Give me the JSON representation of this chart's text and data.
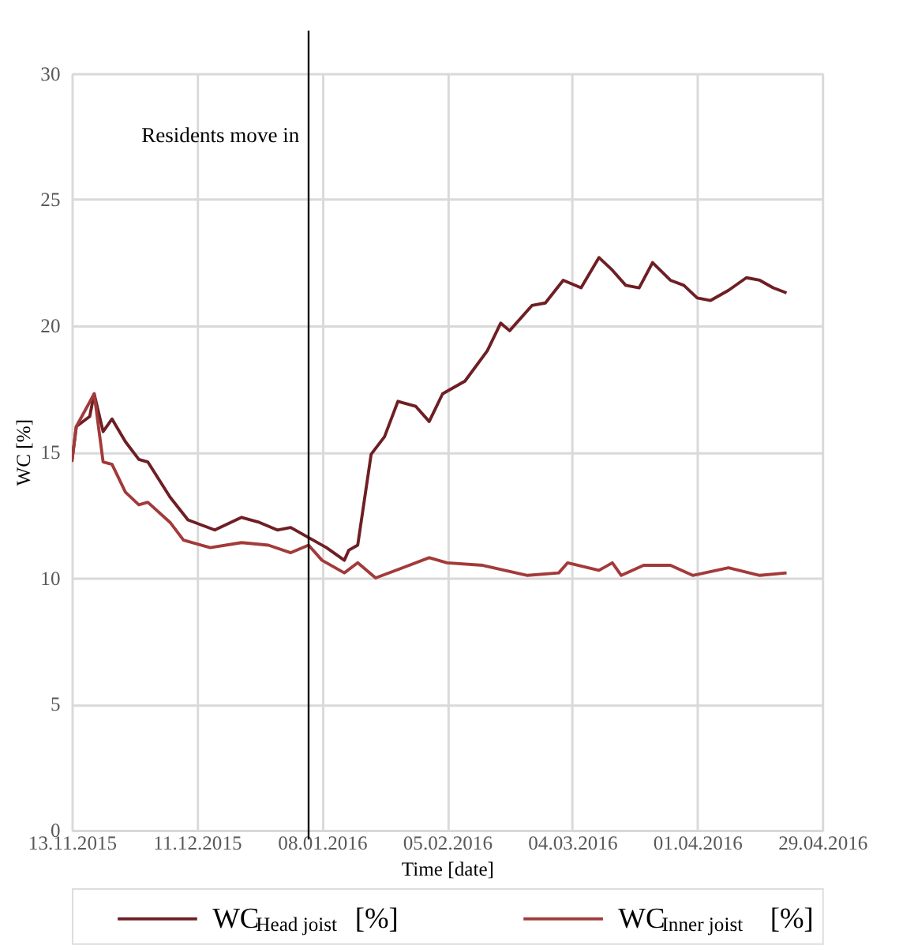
{
  "chart_data": {
    "type": "line",
    "xlabel": "Time [date]",
    "ylabel": "WC [%]",
    "xlim": [
      "2015-11-13",
      "2016-04-29"
    ],
    "xticks": [
      {
        "value": "2015-11-13",
        "label": "13.11.2015"
      },
      {
        "value": "2015-12-11",
        "label": "11.12.2015"
      },
      {
        "value": "2016-01-08",
        "label": "08.01.2016"
      },
      {
        "value": "2016-02-05",
        "label": "05.02.2016"
      },
      {
        "value": "2016-03-04",
        "label": "04.03.2016"
      },
      {
        "value": "2016-04-01",
        "label": "01.04.2016"
      },
      {
        "value": "2016-04-29",
        "label": "29.04.2016"
      }
    ],
    "ylim": [
      0,
      30
    ],
    "yticks": [
      0,
      5,
      10,
      15,
      20,
      25,
      30
    ],
    "grid": true,
    "legend": "bottom",
    "line_style": "solid",
    "ref_lines": [
      {
        "axis": "x",
        "value": "2016-01-05",
        "label": "Residents move in",
        "color": "#000000"
      }
    ],
    "series": [
      {
        "name": "WC$_{Head joist}$ [%]",
        "color": "#6e1f24",
        "x": [
          "2015-11-13",
          "2015-11-14",
          "2015-11-17",
          "2015-11-18",
          "2015-11-20",
          "2015-11-22",
          "2015-11-25",
          "2015-11-28",
          "2015-11-30",
          "2015-12-05",
          "2015-12-09",
          "2015-12-15",
          "2015-12-21",
          "2015-12-25",
          "2015-12-29",
          "2016-01-01",
          "2016-01-05",
          "2016-01-09",
          "2016-01-13",
          "2016-01-14",
          "2016-01-16",
          "2016-01-19",
          "2016-01-22",
          "2016-01-25",
          "2016-01-29",
          "2016-02-01",
          "2016-02-04",
          "2016-02-09",
          "2016-02-14",
          "2016-02-17",
          "2016-02-19",
          "2016-02-24",
          "2016-02-27",
          "2016-03-02",
          "2016-03-06",
          "2016-03-10",
          "2016-03-13",
          "2016-03-16",
          "2016-03-19",
          "2016-03-22",
          "2016-03-26",
          "2016-03-29",
          "2016-04-01",
          "2016-04-04",
          "2016-04-08",
          "2016-04-12",
          "2016-04-15",
          "2016-04-18",
          "2016-04-21"
        ],
        "values": [
          14.6,
          16.0,
          16.4,
          17.3,
          15.8,
          16.3,
          15.4,
          14.7,
          14.6,
          13.2,
          12.3,
          11.9,
          12.4,
          12.2,
          11.9,
          12.0,
          11.6,
          11.2,
          10.7,
          11.1,
          11.3,
          14.9,
          15.6,
          17.0,
          16.8,
          16.2,
          17.3,
          17.8,
          19.0,
          20.1,
          19.8,
          20.8,
          20.9,
          21.8,
          21.5,
          22.7,
          22.2,
          21.6,
          21.5,
          22.5,
          21.8,
          21.6,
          21.1,
          21.0,
          21.4,
          21.9,
          21.8,
          21.5,
          21.3
        ]
      },
      {
        "name": "WC$_{Inner joist}$ [%]",
        "color": "#a33a3a",
        "x": [
          "2015-11-13",
          "2015-11-14",
          "2015-11-18",
          "2015-11-20",
          "2015-11-22",
          "2015-11-25",
          "2015-11-28",
          "2015-11-30",
          "2015-12-05",
          "2015-12-08",
          "2015-12-14",
          "2015-12-21",
          "2015-12-27",
          "2016-01-01",
          "2016-01-05",
          "2016-01-08",
          "2016-01-13",
          "2016-01-16",
          "2016-01-20",
          "2016-01-26",
          "2016-02-01",
          "2016-02-05",
          "2016-02-13",
          "2016-02-23",
          "2016-03-01",
          "2016-03-03",
          "2016-03-10",
          "2016-03-13",
          "2016-03-15",
          "2016-03-20",
          "2016-03-26",
          "2016-03-31",
          "2016-04-08",
          "2016-04-15",
          "2016-04-21"
        ],
        "values": [
          14.6,
          16.0,
          17.3,
          14.6,
          14.5,
          13.4,
          12.9,
          13.0,
          12.2,
          11.5,
          11.2,
          11.4,
          11.3,
          11.0,
          11.3,
          10.7,
          10.2,
          10.6,
          10.0,
          10.4,
          10.8,
          10.6,
          10.5,
          10.1,
          10.2,
          10.6,
          10.3,
          10.6,
          10.1,
          10.5,
          10.5,
          10.1,
          10.4,
          10.1,
          10.2
        ]
      }
    ]
  }
}
